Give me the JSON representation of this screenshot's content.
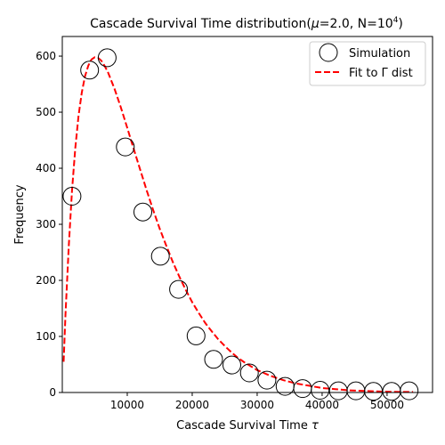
{
  "chart_data": {
    "type": "scatter",
    "title": {
      "prefix": "Cascade Survival Time distribution(",
      "mu_symbol": "μ",
      "mu_rest": "=2.0, N=10",
      "exponent": "4",
      "suffix": ")"
    },
    "xlabel": {
      "text": "Cascade Survival Time ",
      "symbol": "τ"
    },
    "ylabel": "Frequency",
    "xlim": [
      0,
      57000
    ],
    "ylim": [
      0,
      635
    ],
    "xticks": [
      10000,
      20000,
      30000,
      40000,
      50000
    ],
    "yticks": [
      0,
      100,
      200,
      300,
      400,
      500,
      600
    ],
    "grid": false,
    "legend_position": "top-right",
    "series": [
      {
        "name": "Simulation",
        "kind": "markers",
        "marker": "open-circle",
        "color": "#000000",
        "x": [
          1500,
          4200,
          6900,
          9700,
          12400,
          15100,
          17900,
          20600,
          23300,
          26100,
          28800,
          31500,
          34300,
          37000,
          39700,
          42500,
          45200,
          47900,
          50700,
          53400
        ],
        "y": [
          350,
          575,
          597,
          438,
          322,
          243,
          184,
          101,
          59,
          49,
          35,
          22,
          11,
          7,
          4,
          3,
          3,
          2,
          2,
          3
        ]
      },
      {
        "name": "Fit to Γ dist",
        "kind": "dashed-line",
        "color": "#ff0000",
        "x": [
          200,
          500,
          1000,
          1500,
          2000,
          2500,
          3000,
          3500,
          4000,
          4500,
          5000,
          5500,
          6000,
          6500,
          7000,
          8000,
          9000,
          10000,
          11000,
          12000,
          13000,
          14000,
          15000,
          16000,
          17000,
          18000,
          19000,
          20000,
          21000,
          22000,
          23000,
          24000,
          25000,
          26000,
          27000,
          28000,
          29000,
          30000,
          32000,
          34000,
          36000,
          38000,
          40000,
          42000,
          44000,
          46000,
          48000,
          50000,
          52000,
          54000
        ],
        "y": [
          55,
          140,
          262,
          360,
          436,
          493,
          535,
          564,
          583,
          594,
          598,
          597,
          592,
          583,
          572,
          543,
          509,
          472,
          434,
          397,
          360,
          325,
          292,
          262,
          233,
          207,
          183,
          161,
          142,
          124,
          109,
          95,
          83,
          72,
          62,
          54,
          47,
          40,
          30,
          22,
          16,
          12,
          8,
          6,
          4,
          3,
          2,
          1.5,
          1,
          1
        ]
      }
    ]
  }
}
